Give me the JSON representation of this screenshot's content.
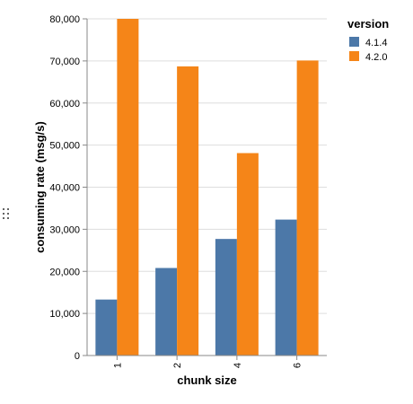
{
  "chart_data": {
    "type": "bar",
    "grouped": true,
    "categories": [
      "1",
      "2",
      "4",
      "6"
    ],
    "series": [
      {
        "name": "4.1.4",
        "color": "#4c78a8",
        "values": [
          13300,
          20800,
          27700,
          32300
        ]
      },
      {
        "name": "4.2.0",
        "color": "#f58518",
        "values": [
          80000,
          68700,
          48100,
          70100
        ]
      }
    ],
    "xlabel": "chunk size",
    "ylabel": "consuming rate (msg/s)",
    "ylim": [
      0,
      80000
    ],
    "yticks": [
      0,
      10000,
      20000,
      30000,
      40000,
      50000,
      60000,
      70000,
      80000
    ],
    "ytick_labels": [
      "0",
      "10,000",
      "20,000",
      "30,000",
      "40,000",
      "50,000",
      "60,000",
      "70,000",
      "80,000"
    ],
    "grid": true,
    "legend": {
      "title": "version",
      "position": "top-right"
    }
  },
  "ui": {
    "drag_handle_icon": "drag-handle-icon"
  }
}
